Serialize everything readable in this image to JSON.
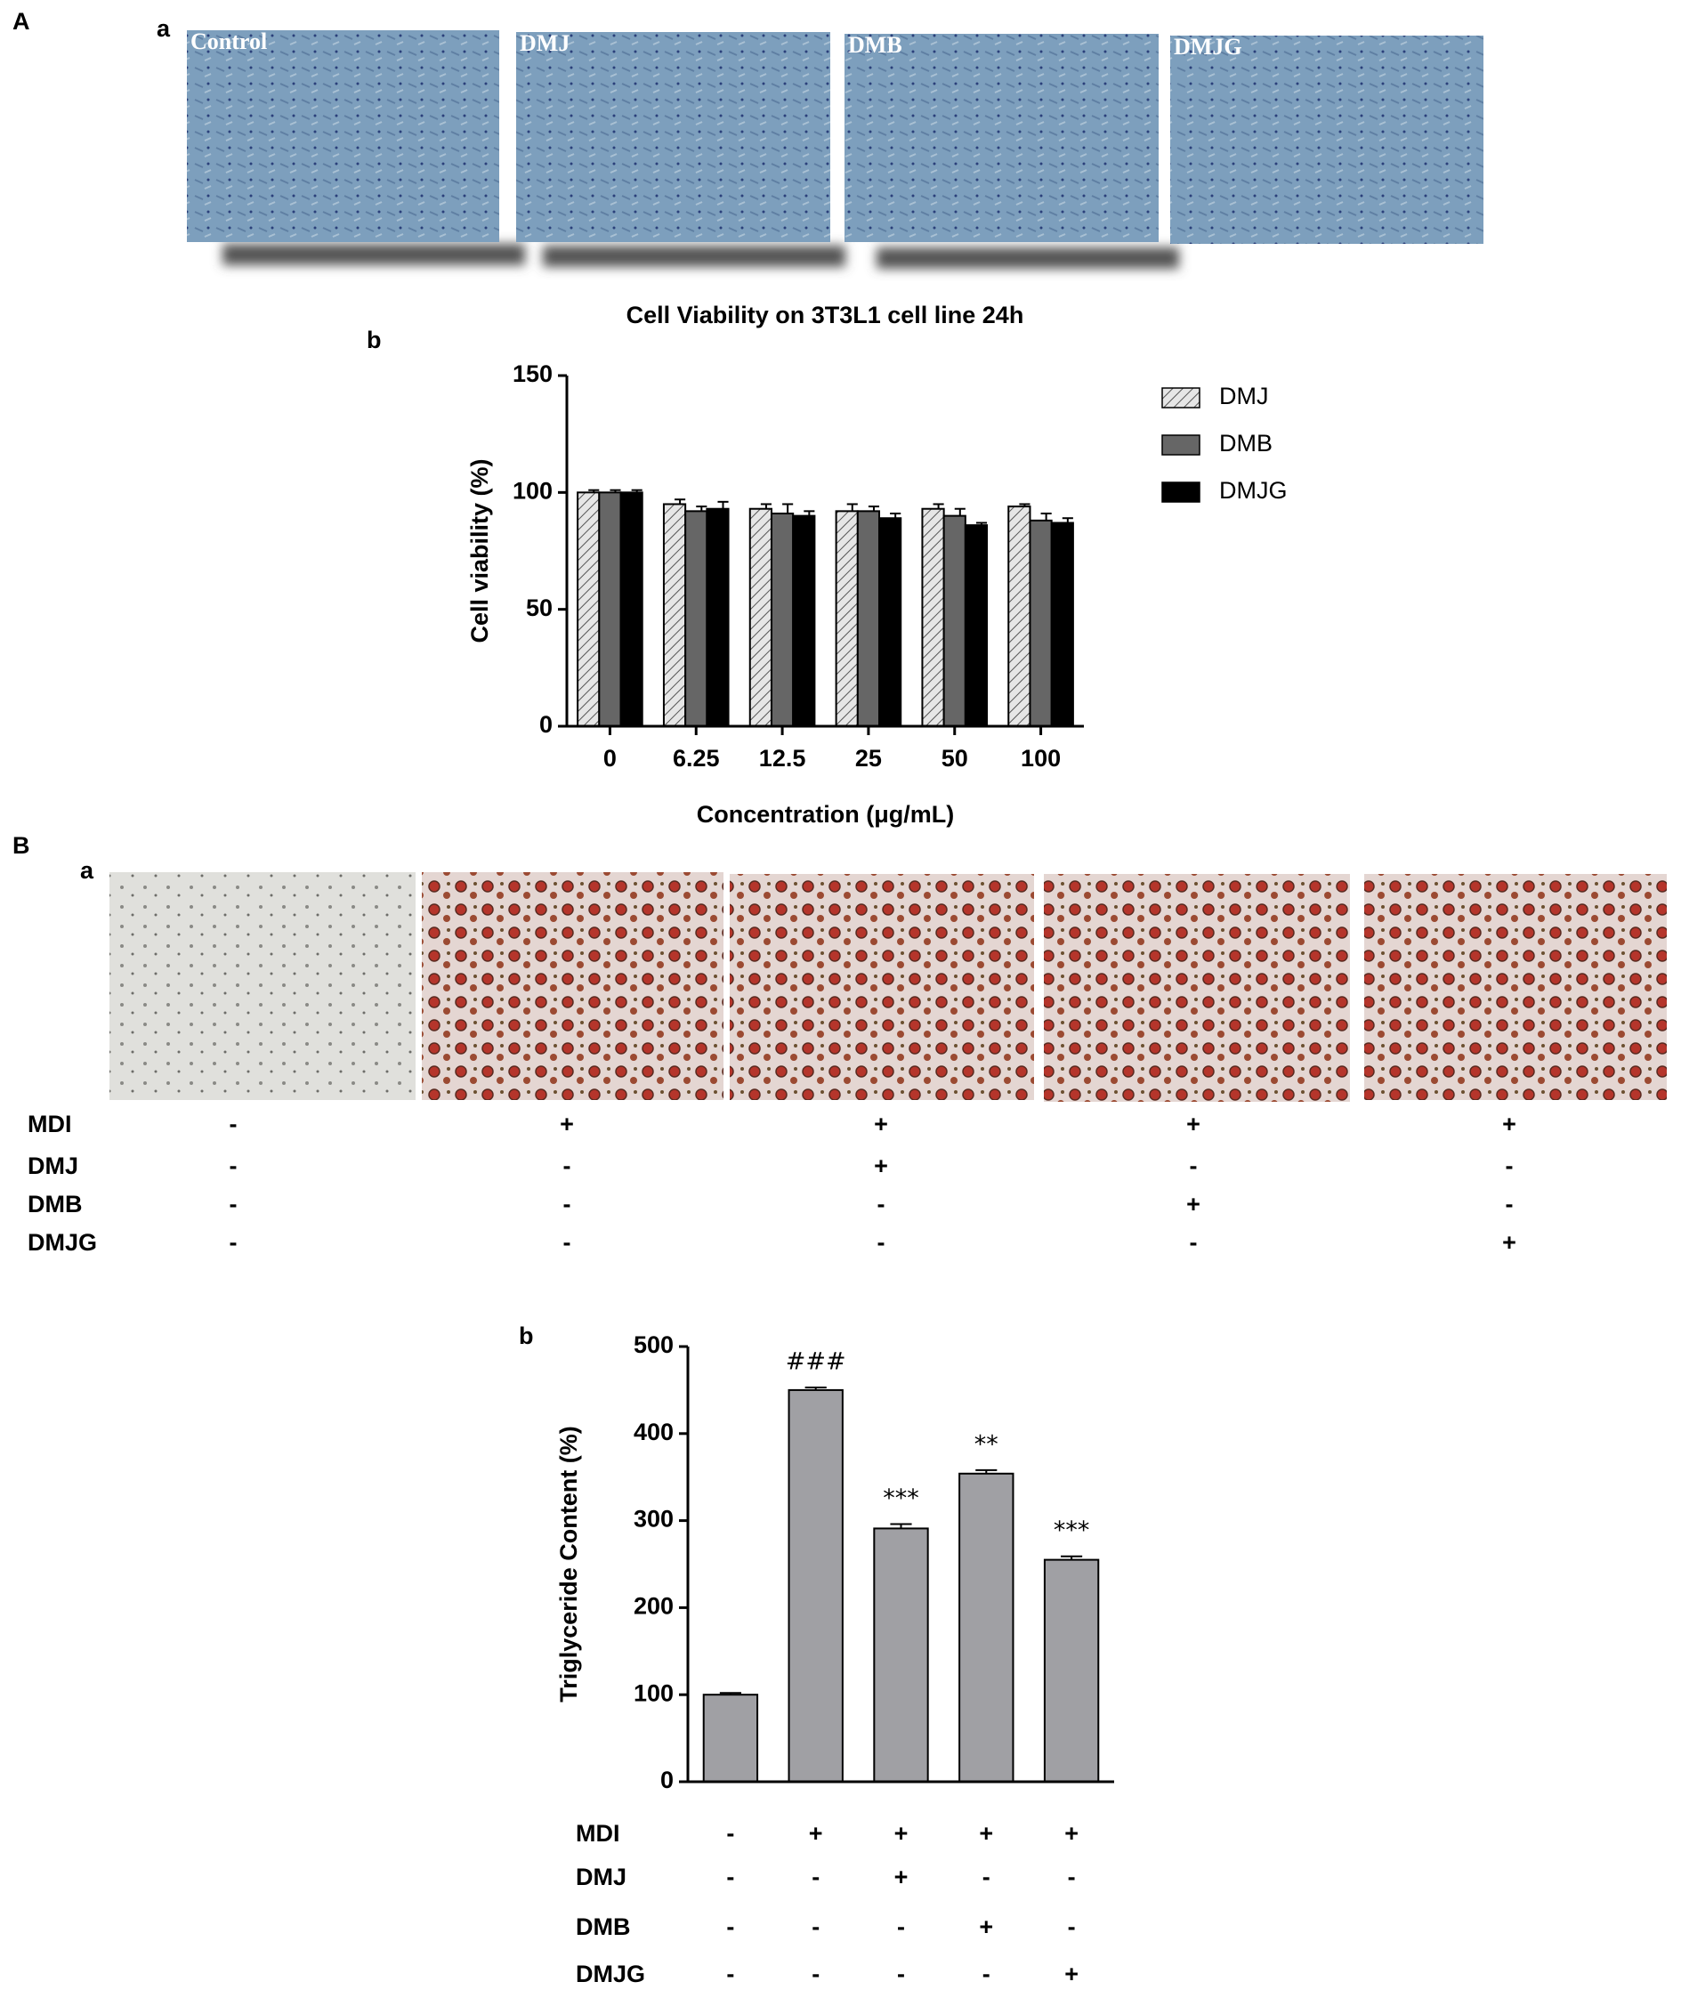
{
  "panel_A": {
    "label": "A",
    "image_label": "a",
    "chart_label": "b",
    "images": [
      "Control",
      "DMJ",
      "DMB",
      "DMJG"
    ]
  },
  "panel_B": {
    "label": "B",
    "image_label": "a",
    "chart_label": "b",
    "treatments": [
      {
        "name": "MDI",
        "cells": [
          "-",
          "+",
          "+",
          "+",
          "+"
        ]
      },
      {
        "name": "DMJ",
        "cells": [
          "-",
          "-",
          "+",
          "-",
          "-"
        ]
      },
      {
        "name": "DMB",
        "cells": [
          "-",
          "-",
          "-",
          "+",
          "-"
        ]
      },
      {
        "name": "DMJG",
        "cells": [
          "-",
          "-",
          "-",
          "-",
          "+"
        ]
      }
    ]
  },
  "chart_data": [
    {
      "type": "bar",
      "title": "Cell Viability on 3T3L1 cell line 24h",
      "x_label": "Concentration (μg/mL)",
      "y_label": "Cell viability (%)",
      "categories": [
        "0",
        "6.25",
        "12.5",
        "25",
        "50",
        "100"
      ],
      "series": [
        {
          "name": "DMJ",
          "color": "#d9d9d9",
          "pattern": "hatch",
          "values": [
            100,
            95,
            93,
            92,
            93,
            94
          ],
          "errors": [
            1,
            2,
            2,
            3,
            2,
            1
          ]
        },
        {
          "name": "DMB",
          "color": "#666666",
          "values": [
            100,
            92,
            91,
            92,
            90,
            88
          ],
          "errors": [
            1,
            2,
            4,
            2,
            3,
            3
          ]
        },
        {
          "name": "DMJG",
          "color": "#000000",
          "values": [
            100,
            93,
            90,
            89,
            86,
            87
          ],
          "errors": [
            1,
            3,
            2,
            2,
            1,
            2
          ]
        }
      ],
      "ylim": [
        0,
        150
      ],
      "yticks": [
        0,
        50,
        100,
        150
      ],
      "legend": "right"
    },
    {
      "type": "bar",
      "y_label": "Triglyceride Content (%)",
      "categories": [
        null,
        null,
        null,
        null,
        null
      ],
      "values": [
        100,
        450,
        291,
        354,
        255
      ],
      "errors": [
        2,
        3,
        5,
        4,
        4
      ],
      "annotations": [
        null,
        "###",
        "***",
        "**",
        "***"
      ],
      "color": "#a0a0a4",
      "ylim": [
        0,
        500
      ],
      "yticks": [
        0,
        100,
        200,
        300,
        400,
        500
      ],
      "treatments": [
        {
          "name": "MDI",
          "cells": [
            "-",
            "+",
            "+",
            "+",
            "+"
          ]
        },
        {
          "name": "DMJ",
          "cells": [
            "-",
            "-",
            "+",
            "-",
            "-"
          ]
        },
        {
          "name": "DMB",
          "cells": [
            "-",
            "-",
            "-",
            "+",
            "-"
          ]
        },
        {
          "name": "DMJG",
          "cells": [
            "-",
            "-",
            "-",
            "-",
            "+"
          ]
        }
      ]
    }
  ]
}
